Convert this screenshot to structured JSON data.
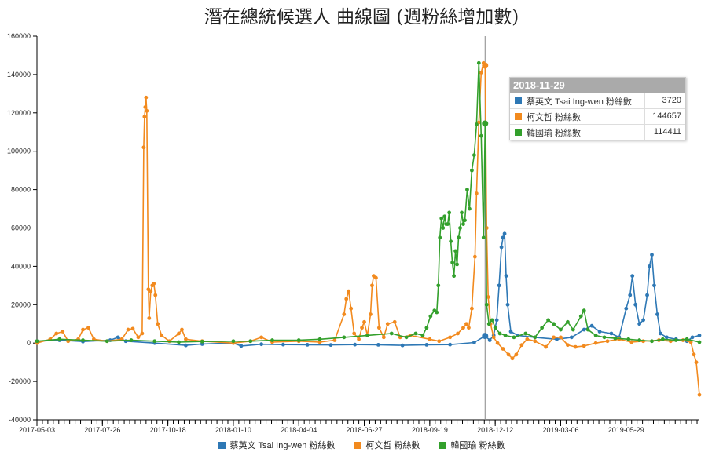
{
  "title": "潛在總統候選人 曲線圖 (週粉絲增加數)",
  "tooltip": {
    "date": "2018-11-29",
    "rows": [
      {
        "name": "蔡英文 Tsai Ing-wen 粉絲數",
        "value": "3720",
        "color": "#2e78b5"
      },
      {
        "name": "柯文哲 粉絲數",
        "value": "144657",
        "color": "#f28a1e"
      },
      {
        "name": "韓國瑜 粉絲數",
        "value": "114411",
        "color": "#33a02c"
      }
    ]
  },
  "legend": [
    {
      "label": "蔡英文 Tsai Ing-wen 粉絲數",
      "color": "#2e78b5"
    },
    {
      "label": "柯文哲 粉絲數",
      "color": "#f28a1e"
    },
    {
      "label": "韓國瑜 粉絲數",
      "color": "#33a02c"
    }
  ],
  "chart_data": {
    "type": "line",
    "title": "潛在總統候選人 曲線圖 (週粉絲增加數)",
    "xlabel": "",
    "ylabel": "",
    "ylim": [
      -40000,
      160000
    ],
    "yticks": [
      -40000,
      -20000,
      0,
      20000,
      40000,
      60000,
      80000,
      100000,
      120000,
      140000,
      160000
    ],
    "xlim": [
      "2017-05-03",
      "2019-08-31"
    ],
    "xticks": [
      "2017-05-03",
      "2017-07-26",
      "2017-10-18",
      "2018-01-10",
      "2018-04-04",
      "2018-06-27",
      "2018-09-19",
      "2018-12-12",
      "2019-03-06",
      "2019-05-29"
    ],
    "grid": false,
    "legend_position": "bottom",
    "highlight_date": "2018-11-29",
    "series": [
      {
        "name": "蔡英文 Tsai Ing-wen 粉絲數",
        "color": "#2e78b5",
        "points": [
          [
            "2017-05-03",
            1000
          ],
          [
            "2017-06-01",
            1500
          ],
          [
            "2017-07-01",
            800
          ],
          [
            "2017-08-05",
            1500
          ],
          [
            "2017-08-15",
            3000
          ],
          [
            "2017-08-25",
            1000
          ],
          [
            "2017-10-01",
            0
          ],
          [
            "2017-11-10",
            -1200
          ],
          [
            "2017-12-01",
            -500
          ],
          [
            "2018-01-10",
            0
          ],
          [
            "2018-01-20",
            -1500
          ],
          [
            "2018-02-15",
            -600
          ],
          [
            "2018-03-15",
            -800
          ],
          [
            "2018-04-15",
            -900
          ],
          [
            "2018-05-15",
            -1000
          ],
          [
            "2018-06-15",
            -800
          ],
          [
            "2018-07-15",
            -900
          ],
          [
            "2018-08-15",
            -1200
          ],
          [
            "2018-09-15",
            -900
          ],
          [
            "2018-10-15",
            -800
          ],
          [
            "2018-11-15",
            300
          ],
          [
            "2018-11-29",
            3720
          ],
          [
            "2018-12-05",
            1500
          ],
          [
            "2018-12-10",
            4000
          ],
          [
            "2018-12-14",
            12000
          ],
          [
            "2018-12-17",
            30000
          ],
          [
            "2018-12-20",
            50000
          ],
          [
            "2018-12-22",
            55000
          ],
          [
            "2018-12-24",
            57000
          ],
          [
            "2018-12-26",
            35000
          ],
          [
            "2018-12-28",
            20000
          ],
          [
            "2019-01-01",
            6000
          ],
          [
            "2019-01-10",
            4000
          ],
          [
            "2019-02-01",
            3000
          ],
          [
            "2019-03-01",
            2000
          ],
          [
            "2019-03-20",
            3000
          ],
          [
            "2019-04-05",
            7000
          ],
          [
            "2019-04-15",
            9000
          ],
          [
            "2019-04-25",
            6000
          ],
          [
            "2019-05-10",
            5000
          ],
          [
            "2019-05-20",
            3000
          ],
          [
            "2019-05-29",
            18000
          ],
          [
            "2019-06-03",
            25000
          ],
          [
            "2019-06-06",
            35000
          ],
          [
            "2019-06-10",
            20000
          ],
          [
            "2019-06-15",
            10000
          ],
          [
            "2019-06-20",
            12000
          ],
          [
            "2019-06-25",
            25000
          ],
          [
            "2019-06-28",
            40000
          ],
          [
            "2019-07-01",
            46000
          ],
          [
            "2019-07-04",
            30000
          ],
          [
            "2019-07-08",
            15000
          ],
          [
            "2019-07-12",
            5000
          ],
          [
            "2019-07-20",
            3000
          ],
          [
            "2019-08-01",
            2000
          ],
          [
            "2019-08-15",
            1000
          ],
          [
            "2019-08-22",
            3000
          ],
          [
            "2019-08-31",
            4000
          ]
        ]
      },
      {
        "name": "柯文哲 粉絲數",
        "color": "#f28a1e",
        "points": [
          [
            "2017-05-03",
            0
          ],
          [
            "2017-05-20",
            2000
          ],
          [
            "2017-05-28",
            5000
          ],
          [
            "2017-06-05",
            6000
          ],
          [
            "2017-06-12",
            1000
          ],
          [
            "2017-06-25",
            2000
          ],
          [
            "2017-07-01",
            7000
          ],
          [
            "2017-07-08",
            8000
          ],
          [
            "2017-07-15",
            2000
          ],
          [
            "2017-08-01",
            1000
          ],
          [
            "2017-08-20",
            2000
          ],
          [
            "2017-08-28",
            7000
          ],
          [
            "2017-09-03",
            7500
          ],
          [
            "2017-09-10",
            3000
          ],
          [
            "2017-09-15",
            5000
          ],
          [
            "2017-09-17",
            102000
          ],
          [
            "2017-09-18",
            118000
          ],
          [
            "2017-09-19",
            123000
          ],
          [
            "2017-09-20",
            128000
          ],
          [
            "2017-09-21",
            121000
          ],
          [
            "2017-09-23",
            28000
          ],
          [
            "2017-09-24",
            13000
          ],
          [
            "2017-09-26",
            27000
          ],
          [
            "2017-09-28",
            30000
          ],
          [
            "2017-09-30",
            31000
          ],
          [
            "2017-10-02",
            25000
          ],
          [
            "2017-10-05",
            10000
          ],
          [
            "2017-10-10",
            4000
          ],
          [
            "2017-10-20",
            1000
          ],
          [
            "2017-11-01",
            5000
          ],
          [
            "2017-11-05",
            7000
          ],
          [
            "2017-11-10",
            2000
          ],
          [
            "2017-12-01",
            1000
          ],
          [
            "2018-01-10",
            0
          ],
          [
            "2018-02-01",
            1000
          ],
          [
            "2018-02-15",
            3000
          ],
          [
            "2018-03-01",
            500
          ],
          [
            "2018-04-04",
            1000
          ],
          [
            "2018-05-01",
            500
          ],
          [
            "2018-05-20",
            1500
          ],
          [
            "2018-06-01",
            15000
          ],
          [
            "2018-06-04",
            23000
          ],
          [
            "2018-06-07",
            27000
          ],
          [
            "2018-06-10",
            18000
          ],
          [
            "2018-06-14",
            5000
          ],
          [
            "2018-06-20",
            2000
          ],
          [
            "2018-06-24",
            8000
          ],
          [
            "2018-06-27",
            11000
          ],
          [
            "2018-07-01",
            4000
          ],
          [
            "2018-07-05",
            15000
          ],
          [
            "2018-07-07",
            30000
          ],
          [
            "2018-07-09",
            35000
          ],
          [
            "2018-07-12",
            34000
          ],
          [
            "2018-07-16",
            8000
          ],
          [
            "2018-07-22",
            3000
          ],
          [
            "2018-07-27",
            10000
          ],
          [
            "2018-08-05",
            11000
          ],
          [
            "2018-08-12",
            3000
          ],
          [
            "2018-08-25",
            4000
          ],
          [
            "2018-09-19",
            2000
          ],
          [
            "2018-10-01",
            1000
          ],
          [
            "2018-10-15",
            3000
          ],
          [
            "2018-10-25",
            5000
          ],
          [
            "2018-11-01",
            8000
          ],
          [
            "2018-11-05",
            10000
          ],
          [
            "2018-11-08",
            8000
          ],
          [
            "2018-11-12",
            18000
          ],
          [
            "2018-11-16",
            45000
          ],
          [
            "2018-11-18",
            78000
          ],
          [
            "2018-11-21",
            115000
          ],
          [
            "2018-11-24",
            141000
          ],
          [
            "2018-11-27",
            146000
          ],
          [
            "2018-11-29",
            144657
          ],
          [
            "2018-12-01",
            60000
          ],
          [
            "2018-12-03",
            24000
          ],
          [
            "2018-12-06",
            10000
          ],
          [
            "2018-12-10",
            3000
          ],
          [
            "2018-12-15",
            0
          ],
          [
            "2018-12-22",
            -3000
          ],
          [
            "2018-12-29",
            -6000
          ],
          [
            "2019-01-03",
            -8000
          ],
          [
            "2019-01-08",
            -6000
          ],
          [
            "2019-01-15",
            -1000
          ],
          [
            "2019-01-22",
            2000
          ],
          [
            "2019-02-01",
            1000
          ],
          [
            "2019-02-15",
            -2000
          ],
          [
            "2019-02-25",
            3000
          ],
          [
            "2019-03-06",
            3000
          ],
          [
            "2019-03-15",
            -1000
          ],
          [
            "2019-03-25",
            -2000
          ],
          [
            "2019-04-05",
            -1500
          ],
          [
            "2019-04-20",
            0
          ],
          [
            "2019-05-05",
            1000
          ],
          [
            "2019-05-20",
            2000
          ],
          [
            "2019-06-05",
            500
          ],
          [
            "2019-06-20",
            1000
          ],
          [
            "2019-07-10",
            1500
          ],
          [
            "2019-07-25",
            1000
          ],
          [
            "2019-08-10",
            1500
          ],
          [
            "2019-08-20",
            500
          ],
          [
            "2019-08-24",
            -6000
          ],
          [
            "2019-08-27",
            -10000
          ],
          [
            "2019-08-31",
            -27000
          ]
        ]
      },
      {
        "name": "韓國瑜 粉絲數",
        "color": "#33a02c",
        "points": [
          [
            "2017-05-03",
            1000
          ],
          [
            "2017-06-01",
            2000
          ],
          [
            "2017-07-01",
            1500
          ],
          [
            "2017-08-01",
            1000
          ],
          [
            "2017-09-01",
            1500
          ],
          [
            "2017-10-01",
            1000
          ],
          [
            "2017-11-01",
            500
          ],
          [
            "2017-12-01",
            800
          ],
          [
            "2018-01-10",
            1000
          ],
          [
            "2018-02-01",
            1000
          ],
          [
            "2018-03-01",
            1500
          ],
          [
            "2018-04-04",
            1500
          ],
          [
            "2018-05-01",
            2000
          ],
          [
            "2018-06-01",
            3000
          ],
          [
            "2018-07-01",
            4000
          ],
          [
            "2018-08-01",
            5000
          ],
          [
            "2018-08-20",
            3000
          ],
          [
            "2018-09-01",
            5000
          ],
          [
            "2018-09-10",
            4000
          ],
          [
            "2018-09-15",
            8000
          ],
          [
            "2018-09-20",
            14000
          ],
          [
            "2018-09-25",
            17000
          ],
          [
            "2018-09-28",
            16000
          ],
          [
            "2018-09-30",
            30000
          ],
          [
            "2018-10-02",
            55000
          ],
          [
            "2018-10-04",
            65000
          ],
          [
            "2018-10-06",
            60000
          ],
          [
            "2018-10-08",
            66000
          ],
          [
            "2018-10-10",
            62000
          ],
          [
            "2018-10-12",
            62000
          ],
          [
            "2018-10-14",
            68000
          ],
          [
            "2018-10-16",
            53000
          ],
          [
            "2018-10-18",
            42000
          ],
          [
            "2018-10-20",
            35000
          ],
          [
            "2018-10-22",
            48000
          ],
          [
            "2018-10-24",
            41000
          ],
          [
            "2018-10-26",
            55000
          ],
          [
            "2018-10-28",
            60000
          ],
          [
            "2018-10-30",
            68000
          ],
          [
            "2018-11-01",
            62000
          ],
          [
            "2018-11-03",
            64000
          ],
          [
            "2018-11-06",
            80000
          ],
          [
            "2018-11-09",
            70000
          ],
          [
            "2018-11-12",
            90000
          ],
          [
            "2018-11-15",
            98000
          ],
          [
            "2018-11-18",
            114000
          ],
          [
            "2018-11-21",
            146000
          ],
          [
            "2018-11-24",
            108000
          ],
          [
            "2018-11-27",
            55000
          ],
          [
            "2018-11-29",
            114411
          ],
          [
            "2018-12-01",
            20000
          ],
          [
            "2018-12-04",
            10000
          ],
          [
            "2018-12-08",
            12000
          ],
          [
            "2018-12-12",
            8000
          ],
          [
            "2018-12-18",
            5000
          ],
          [
            "2018-12-25",
            4000
          ],
          [
            "2019-01-05",
            3000
          ],
          [
            "2019-01-20",
            5000
          ],
          [
            "2019-02-01",
            3000
          ],
          [
            "2019-02-10",
            8000
          ],
          [
            "2019-02-18",
            12000
          ],
          [
            "2019-02-25",
            10000
          ],
          [
            "2019-03-06",
            7000
          ],
          [
            "2019-03-15",
            11000
          ],
          [
            "2019-03-22",
            7000
          ],
          [
            "2019-04-01",
            14000
          ],
          [
            "2019-04-05",
            17000
          ],
          [
            "2019-04-10",
            7000
          ],
          [
            "2019-04-20",
            4000
          ],
          [
            "2019-05-01",
            3000
          ],
          [
            "2019-05-15",
            2500
          ],
          [
            "2019-06-01",
            2000
          ],
          [
            "2019-06-15",
            1500
          ],
          [
            "2019-07-01",
            1000
          ],
          [
            "2019-07-15",
            2000
          ],
          [
            "2019-08-01",
            1500
          ],
          [
            "2019-08-15",
            2000
          ],
          [
            "2019-08-31",
            500
          ]
        ]
      }
    ]
  }
}
